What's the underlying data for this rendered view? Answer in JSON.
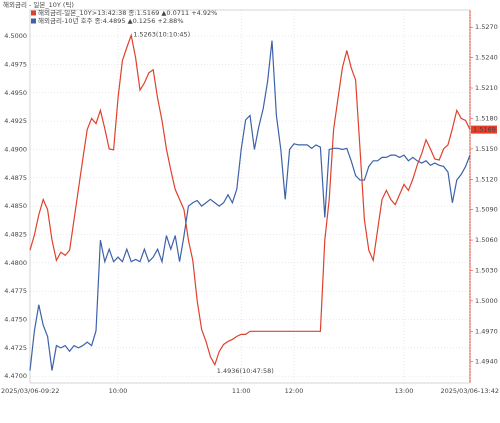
{
  "chart_data": {
    "type": "line",
    "title": "해외금리 - 일본_10Y (틱)",
    "categories": [
      "2025/03/06-09:22",
      null,
      null,
      null,
      null,
      null,
      null,
      null,
      null,
      null,
      null,
      null,
      null,
      null,
      null,
      null,
      null,
      null,
      null,
      null,
      "10:00",
      null,
      null,
      null,
      null,
      null,
      null,
      null,
      null,
      null,
      null,
      null,
      null,
      null,
      null,
      null,
      null,
      null,
      null,
      null,
      null,
      null,
      null,
      null,
      null,
      null,
      null,
      null,
      "11:00",
      null,
      null,
      null,
      null,
      null,
      null,
      null,
      null,
      null,
      null,
      null,
      "12:00",
      null,
      null,
      null,
      null,
      null,
      null,
      null,
      null,
      null,
      null,
      null,
      null,
      null,
      null,
      null,
      null,
      null,
      null,
      null,
      null,
      null,
      null,
      null,
      null,
      "13:00",
      null,
      null,
      null,
      null,
      null,
      null,
      null,
      null,
      null,
      null,
      null,
      null,
      null,
      null,
      "2025/03/06-13:42"
    ],
    "series": [
      {
        "name": "해외금리-일본_10Y>13:42:38 종:1.5169 ▲0.0711 +4.92%",
        "color": "#e0412c",
        "axis": "y2",
        "values": [
          1.505,
          1.5065,
          1.5085,
          1.51,
          1.509,
          1.506,
          1.504,
          1.5048,
          1.5045,
          1.505,
          1.508,
          1.511,
          1.514,
          1.5169,
          1.518,
          1.5175,
          1.5188,
          1.517,
          1.515,
          1.5149,
          1.52,
          1.5237,
          1.525,
          1.5262,
          1.524,
          1.5208,
          1.5215,
          1.5225,
          1.5228,
          1.52,
          1.5178,
          1.515,
          1.5129,
          1.511,
          1.51,
          1.509,
          1.506,
          1.504,
          1.5,
          1.4972,
          1.496,
          1.4945,
          1.4937,
          1.495,
          1.4957,
          1.496,
          1.4962,
          1.4965,
          1.4967,
          1.4967,
          1.497,
          1.497,
          1.497,
          1.497,
          1.497,
          1.497,
          1.497,
          1.497,
          1.497,
          1.497,
          1.497,
          1.497,
          1.497,
          1.497,
          1.497,
          1.497,
          1.497,
          1.506,
          1.51,
          1.5169,
          1.52,
          1.523,
          1.5247,
          1.523,
          1.5218,
          1.515,
          1.508,
          1.505,
          1.504,
          1.507,
          1.51,
          1.5109,
          1.51,
          1.5095,
          1.5105,
          1.5115,
          1.5109,
          1.512,
          1.5134,
          1.5145,
          1.5159,
          1.515,
          1.514,
          1.5139,
          1.515,
          1.5154,
          1.517,
          1.5188,
          1.518,
          1.5178,
          1.5169
        ]
      },
      {
        "name": "해외금리-10년 호주 종:4.4895 ▲0.1256 +2.88%",
        "color": "#3d62a8",
        "values": [
          4.4705,
          4.474,
          4.4763,
          4.4745,
          4.4735,
          4.4705,
          4.4727,
          4.4725,
          4.4727,
          4.4722,
          4.4727,
          4.4725,
          4.4727,
          4.473,
          4.4727,
          4.474,
          4.482,
          4.4801,
          4.4812,
          4.4801,
          4.4805,
          4.4801,
          4.4812,
          4.4801,
          4.4803,
          4.4801,
          4.4812,
          4.4801,
          4.4805,
          4.4812,
          4.4801,
          4.4824,
          4.4812,
          4.4824,
          4.4801,
          4.4824,
          4.485,
          4.4853,
          4.4855,
          4.485,
          4.4853,
          4.4856,
          4.4853,
          4.485,
          4.4853,
          4.486,
          4.4853,
          4.4865,
          4.49,
          4.4926,
          4.493,
          4.49,
          4.492,
          4.4936,
          4.496,
          4.4996,
          4.493,
          4.49,
          4.4856,
          4.49,
          4.4905,
          4.4904,
          4.4904,
          4.4904,
          4.4901,
          4.4904,
          4.4902,
          4.484,
          4.49,
          4.4901,
          4.4901,
          4.49,
          4.4901,
          4.489,
          4.4877,
          4.4873,
          4.4873,
          4.4885,
          4.489,
          4.489,
          4.4893,
          4.4893,
          4.4895,
          4.4895,
          4.4893,
          4.4895,
          4.489,
          4.4893,
          4.489,
          4.4888,
          4.489,
          4.4886,
          4.4888,
          4.4886,
          4.4885,
          4.488,
          4.4853,
          4.4873,
          4.4878,
          4.4885,
          4.4895
        ]
      }
    ],
    "ylim": [
      4.4694,
      4.5023
    ],
    "yticks": [
      {
        "value": 4.47,
        "label": "4.4700"
      },
      {
        "value": 4.4725,
        "label": "4.4725"
      },
      {
        "value": 4.475,
        "label": "4.4750"
      },
      {
        "value": 4.4775,
        "label": "4.4775"
      },
      {
        "value": 4.48,
        "label": "4.4800"
      },
      {
        "value": 4.4825,
        "label": "4.4825"
      },
      {
        "value": 4.485,
        "label": "4.4850"
      },
      {
        "value": 4.4875,
        "label": "4.4875"
      },
      {
        "value": 4.49,
        "label": "4.4900"
      },
      {
        "value": 4.4925,
        "label": "4.4925"
      },
      {
        "value": 4.495,
        "label": "4.4950"
      },
      {
        "value": 4.4975,
        "label": "4.4975"
      },
      {
        "value": 4.5,
        "label": "4.5000"
      }
    ],
    "y2lim": [
      1.4919,
      1.5287
    ],
    "y2ticks": [
      {
        "value": 1.494,
        "label": "1.4940"
      },
      {
        "value": 1.497,
        "label": "1.4970"
      },
      {
        "value": 1.5,
        "label": "1.5000"
      },
      {
        "value": 1.503,
        "label": "1.5030"
      },
      {
        "value": 1.506,
        "label": "1.5060"
      },
      {
        "value": 1.509,
        "label": "1.5090"
      },
      {
        "value": 1.512,
        "label": "1.5120"
      },
      {
        "value": 1.515,
        "label": "1.5150"
      },
      {
        "value": 1.518,
        "label": "1.5180"
      },
      {
        "value": 1.521,
        "label": "1.5210"
      },
      {
        "value": 1.524,
        "label": "1.5240"
      },
      {
        "value": 1.527,
        "label": "1.5270"
      }
    ],
    "grid": true,
    "annotations": {
      "high": "1.5263(10:10:45)",
      "low": "1.4936(10:47:58)",
      "last": "1.5169"
    }
  }
}
